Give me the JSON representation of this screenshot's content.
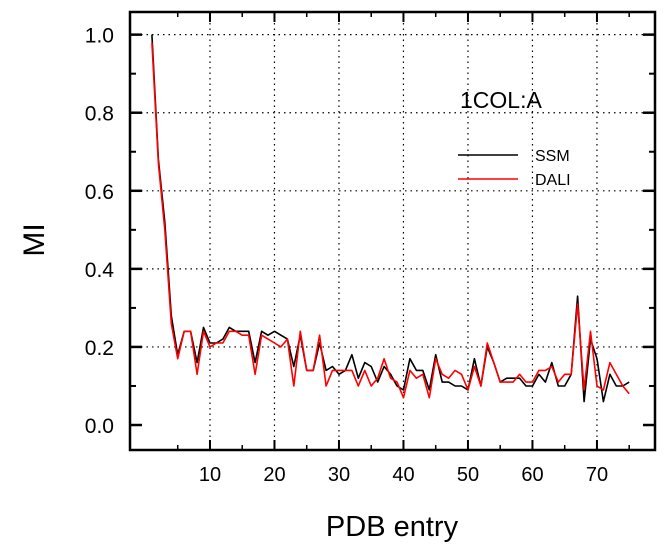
{
  "chart_data": {
    "type": "line",
    "title": "1COL:A",
    "xlabel": "PDB entry",
    "ylabel": "MI",
    "xlim": [
      -2.4,
      79
    ],
    "ylim": [
      -0.064,
      1.058
    ],
    "xticks": [
      10,
      20,
      30,
      40,
      50,
      60,
      70
    ],
    "yticks": [
      0.0,
      0.2,
      0.4,
      0.6,
      0.8,
      1.0
    ],
    "ytick_labels": [
      "0.0",
      "0.2",
      "0.4",
      "0.6",
      "0.8",
      "1.0"
    ],
    "grid": true,
    "legend_position": "top-right",
    "x": [
      1,
      2,
      3,
      4,
      5,
      6,
      7,
      8,
      9,
      10,
      11,
      12,
      13,
      14,
      15,
      16,
      17,
      18,
      19,
      20,
      21,
      22,
      23,
      24,
      25,
      26,
      27,
      28,
      29,
      30,
      31,
      32,
      33,
      34,
      35,
      36,
      37,
      38,
      39,
      40,
      41,
      42,
      43,
      44,
      45,
      46,
      47,
      48,
      49,
      50,
      51,
      52,
      53,
      54,
      55,
      56,
      57,
      58,
      59,
      60,
      61,
      62,
      63,
      64,
      65,
      66,
      67,
      68,
      69,
      70,
      71,
      72,
      73,
      74,
      75
    ],
    "series": [
      {
        "name": "SSM",
        "color": "#000000",
        "values": [
          1.0,
          0.68,
          0.52,
          0.28,
          0.18,
          0.24,
          0.24,
          0.16,
          0.25,
          0.21,
          0.21,
          0.22,
          0.25,
          0.24,
          0.24,
          0.24,
          0.16,
          0.24,
          0.23,
          0.24,
          0.23,
          0.22,
          0.15,
          0.23,
          0.14,
          0.14,
          0.21,
          0.14,
          0.15,
          0.13,
          0.14,
          0.18,
          0.12,
          0.16,
          0.15,
          0.11,
          0.15,
          0.13,
          0.1,
          0.09,
          0.17,
          0.14,
          0.14,
          0.09,
          0.18,
          0.11,
          0.11,
          0.1,
          0.1,
          0.09,
          0.17,
          0.1,
          0.2,
          0.16,
          0.11,
          0.12,
          0.12,
          0.12,
          0.1,
          0.1,
          0.13,
          0.11,
          0.16,
          0.1,
          0.1,
          0.13,
          0.33,
          0.06,
          0.22,
          0.17,
          0.06,
          0.13,
          0.1,
          0.1,
          0.11
        ]
      },
      {
        "name": "DALI",
        "color": "#ff0000",
        "values": [
          0.98,
          0.67,
          0.5,
          0.26,
          0.17,
          0.24,
          0.24,
          0.13,
          0.24,
          0.2,
          0.21,
          0.21,
          0.24,
          0.24,
          0.23,
          0.23,
          0.13,
          0.23,
          0.22,
          0.21,
          0.2,
          0.22,
          0.1,
          0.24,
          0.14,
          0.14,
          0.23,
          0.1,
          0.14,
          0.14,
          0.14,
          0.14,
          0.1,
          0.14,
          0.1,
          0.12,
          0.17,
          0.12,
          0.11,
          0.07,
          0.14,
          0.12,
          0.13,
          0.07,
          0.17,
          0.13,
          0.12,
          0.14,
          0.13,
          0.09,
          0.15,
          0.1,
          0.21,
          0.16,
          0.11,
          0.11,
          0.11,
          0.13,
          0.11,
          0.11,
          0.14,
          0.14,
          0.15,
          0.11,
          0.13,
          0.13,
          0.31,
          0.09,
          0.24,
          0.1,
          0.09,
          0.16,
          0.13,
          0.1,
          0.08
        ]
      }
    ]
  }
}
